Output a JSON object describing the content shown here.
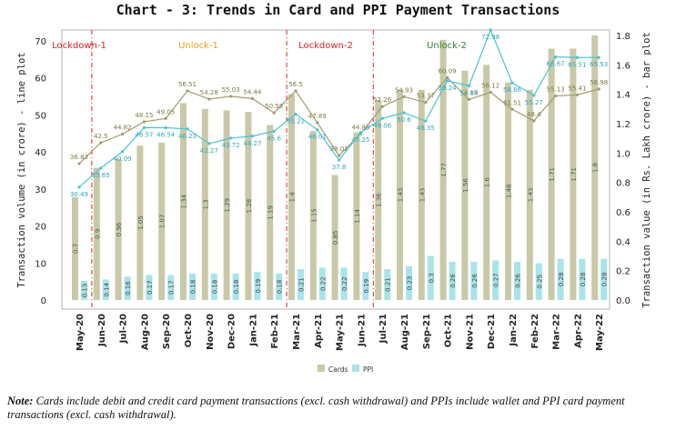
{
  "chart_data": {
    "type": "bar",
    "title": "Chart - 3: Trends in Card and PPI Payment Transactions",
    "ylabel_left": "Transaction volume (in crore) - line plot",
    "ylabel_right": "Transaction value (in Rs. Lakh crore) - bar plot",
    "ylim_left": [
      0,
      70
    ],
    "ylim_right": [
      0,
      1.8
    ],
    "yticks_left": [
      "0",
      "10",
      "20",
      "30",
      "40",
      "50",
      "60",
      "70"
    ],
    "yticks_right": [
      "0.0",
      "0.2",
      "0.4",
      "0.6",
      "0.8",
      "1.0",
      "1.2",
      "1.4",
      "1.6",
      "1.8"
    ],
    "categories": [
      "May-20",
      "Jun-20",
      "Jul-20",
      "Aug-20",
      "Sep-20",
      "Oct-20",
      "Nov-20",
      "Dec-20",
      "Jan-21",
      "Feb-21",
      "Mar-21",
      "Apr-21",
      "May-21",
      "Jun-21",
      "Jul-21",
      "Aug-21",
      "Sep-21",
      "Oct-21",
      "Nov-21",
      "Dec-21",
      "Jan-22",
      "Feb-22",
      "Mar-22",
      "Apr-22",
      "May-22"
    ],
    "bar_series": [
      {
        "name": "Cards",
        "color": "#c9c9a8",
        "values": [
          0.7,
          0.9,
          0.96,
          1.05,
          1.07,
          1.34,
          1.3,
          1.29,
          1.28,
          1.19,
          1.4,
          1.15,
          0.85,
          1.14,
          1.36,
          1.43,
          1.43,
          1.77,
          1.56,
          1.6,
          1.48,
          1.43,
          1.71,
          1.71,
          1.8
        ]
      },
      {
        "name": "PPI",
        "color": "#a8e4ea",
        "values": [
          0.13,
          0.14,
          0.16,
          0.17,
          0.17,
          0.18,
          0.18,
          0.18,
          0.19,
          0.18,
          0.21,
          0.22,
          0.22,
          0.19,
          0.21,
          0.23,
          0.3,
          0.26,
          0.26,
          0.27,
          0.26,
          0.25,
          0.28,
          0.28,
          0.28
        ]
      }
    ],
    "line_series": [
      {
        "name": "Cards",
        "color": "#a09c6c",
        "label_color": "#7d7a40",
        "values": [
          36.83,
          42.5,
          44.82,
          48.15,
          49.05,
          56.51,
          54.28,
          55.03,
          54.44,
          50.58,
          56.5,
          47.89,
          39.01,
          44.88,
          52.26,
          54.93,
          53.37,
          60.09,
          54.18,
          56.12,
          51.51,
          48.4,
          55.13,
          55.41,
          56.98
        ]
      },
      {
        "name": "PPI",
        "color": "#49c4d4",
        "label_color": "#2ea7bd",
        "values": [
          30.49,
          35.65,
          40.09,
          46.57,
          46.54,
          46.23,
          42.27,
          43.72,
          44.27,
          45.6,
          50.21,
          46.01,
          37.8,
          45.25,
          49.06,
          50.6,
          48.35,
          59.24,
          57.87,
          72.98,
          58.66,
          55.27,
          65.67,
          65.51,
          65.53
        ]
      }
    ],
    "phases": [
      {
        "label": "Lockdown-1",
        "color": "#e02020"
      },
      {
        "label": "Unlock-1",
        "color": "#e8a317"
      },
      {
        "label": "Lockdown-2",
        "color": "#e02020"
      },
      {
        "label": "Unlock-2",
        "color": "#2e7d32"
      }
    ],
    "legend": [
      "Cards",
      "PPI"
    ],
    "legend_position": "bottom-center"
  },
  "note": {
    "prefix": "Note:",
    "text": "Cards include debit and credit card payment transactions (excl. cash withdrawal) and PPIs include wallet and PPI card payment transactions (excl. cash withdrawal)."
  }
}
